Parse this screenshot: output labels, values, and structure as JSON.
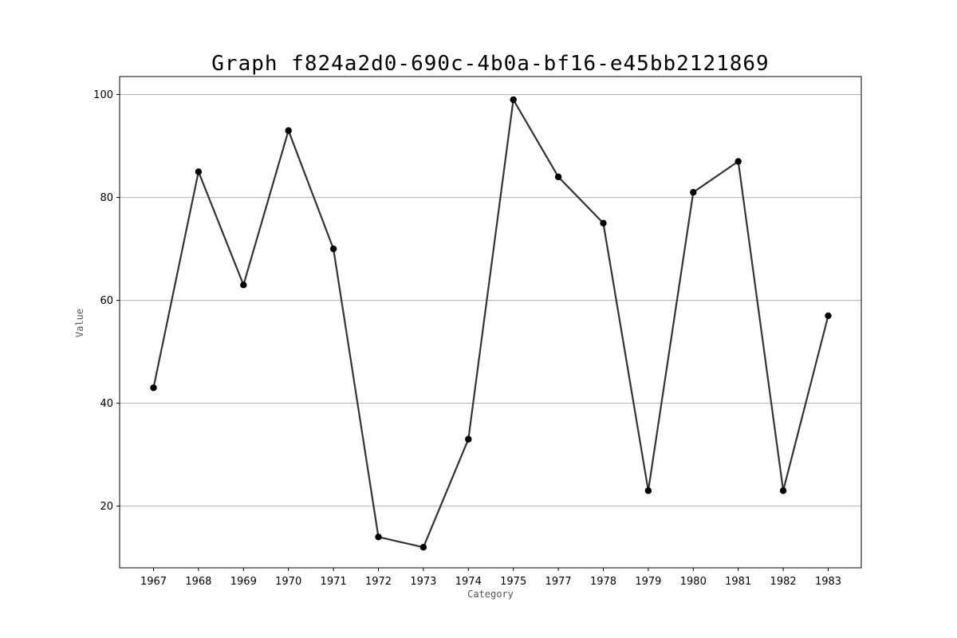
{
  "chart_data": {
    "type": "line",
    "title": "Graph f824a2d0-690c-4b0a-bf16-e45bb2121869",
    "xlabel": "Category",
    "ylabel": "Value",
    "categories": [
      "1967",
      "1968",
      "1969",
      "1970",
      "1971",
      "1972",
      "1973",
      "1974",
      "1975",
      "1977",
      "1978",
      "1979",
      "1980",
      "1981",
      "1982",
      "1983"
    ],
    "series": [
      {
        "values": [
          43,
          85,
          63,
          93,
          70,
          14,
          12,
          33,
          99,
          84,
          75,
          23,
          81,
          87,
          23,
          57
        ],
        "color": "#333333",
        "marker_color": "#000000"
      }
    ],
    "ylim": [
      8,
      103.5
    ],
    "yticks": [
      20,
      40,
      60,
      80,
      100
    ],
    "grid": "y-axis",
    "legend": "none"
  }
}
